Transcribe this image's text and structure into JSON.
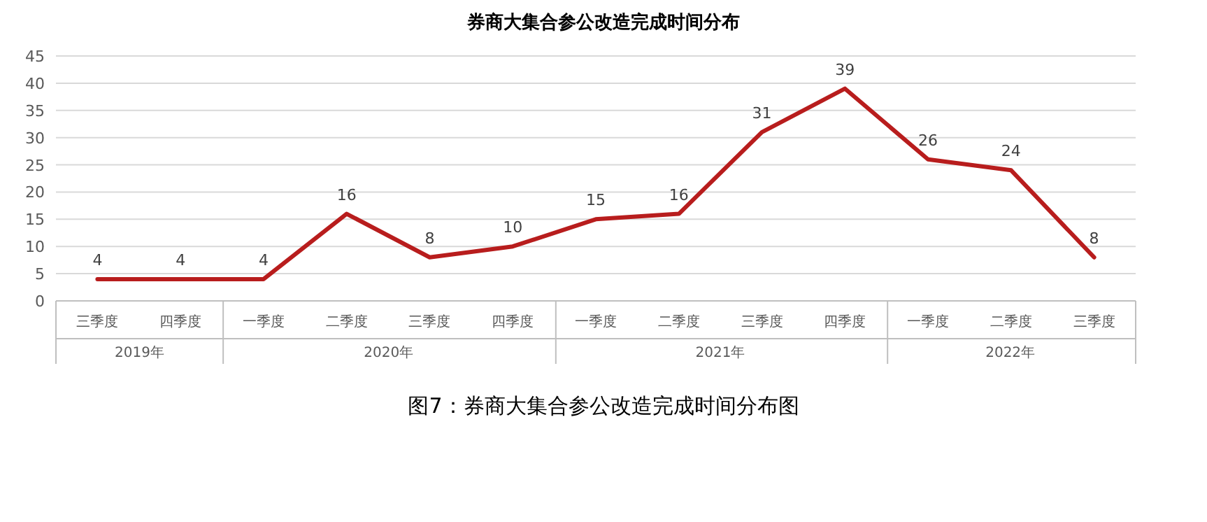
{
  "chart_data": {
    "type": "line",
    "title": "券商大集合参公改造完成时间分布",
    "categories": [
      "三季度",
      "四季度",
      "一季度",
      "二季度",
      "三季度",
      "四季度",
      "一季度",
      "二季度",
      "三季度",
      "四季度",
      "一季度",
      "二季度",
      "三季度"
    ],
    "values": [
      4,
      4,
      4,
      16,
      8,
      10,
      15,
      16,
      31,
      39,
      26,
      24,
      8
    ],
    "color": "#b81d1d",
    "data_labels": true,
    "marker": "none",
    "line_style": "solid",
    "x2lim": [
      "2019-07-01",
      "2022-10-01"
    ],
    "x2ticks": [
      {
        "value": "2019-10-01",
        "label": "2019年"
      },
      {
        "value": "2020-07-01",
        "label": "2020年"
      },
      {
        "value": "2021-07-01",
        "label": "2021年"
      },
      {
        "value": "2022-05-16",
        "label": "2022年"
      }
    ],
    "ylim": [
      0,
      45
    ],
    "yticks": [
      0,
      5,
      10,
      15,
      20,
      25,
      30,
      35,
      40,
      45
    ],
    "grid": "y",
    "annotations": [
      "图7：券商大集合参公改造完成时间分布图"
    ]
  }
}
